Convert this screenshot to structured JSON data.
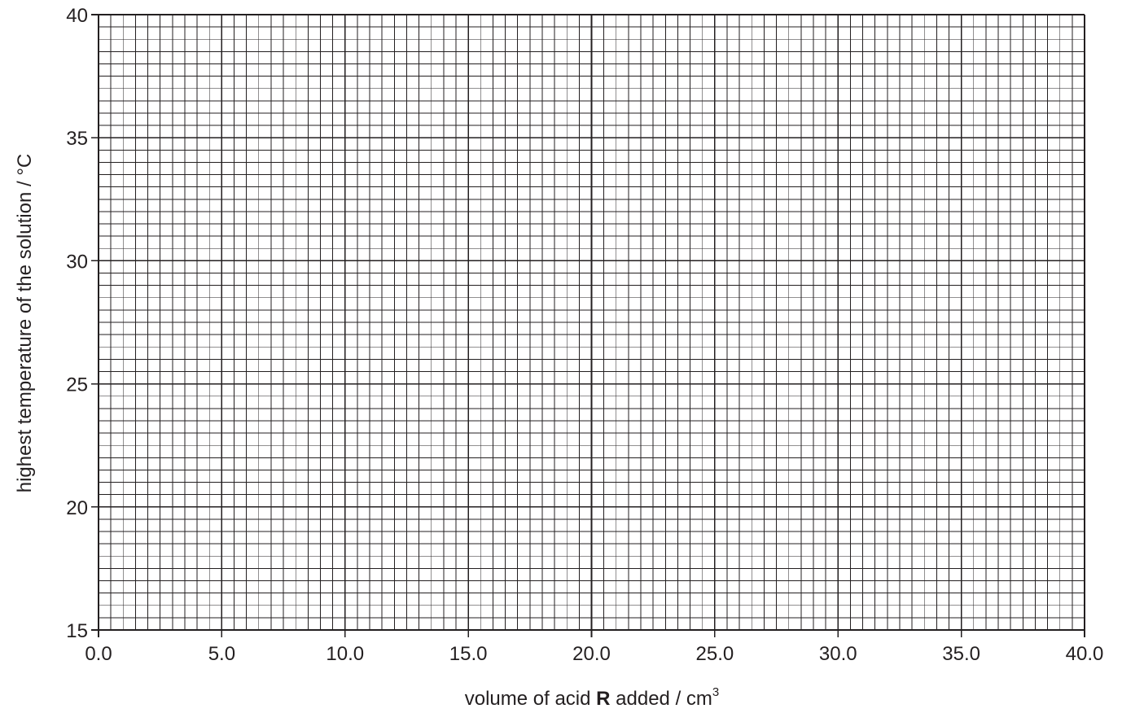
{
  "chart_data": {
    "type": "scatter",
    "title": "",
    "xlabel": {
      "prefix": "volume of acid ",
      "bold": "R",
      "suffix": " added / cm",
      "sup": "3"
    },
    "ylabel": "highest temperature of the solution / °C",
    "xlim": [
      0,
      40
    ],
    "ylim": [
      15,
      40
    ],
    "x_ticks": [
      "0.0",
      "5.0",
      "10.0",
      "15.0",
      "20.0",
      "25.0",
      "30.0",
      "35.0",
      "40.0"
    ],
    "y_ticks": [
      "15",
      "20",
      "25",
      "30",
      "35",
      "40"
    ],
    "x_major_step": 5,
    "x_minor_step": 0.5,
    "y_major_step": 5,
    "y_minor_step": 0.5,
    "grid": true,
    "series": []
  },
  "colors": {
    "grid_line": "#231f20",
    "text": "#231f20",
    "background": "#ffffff"
  }
}
